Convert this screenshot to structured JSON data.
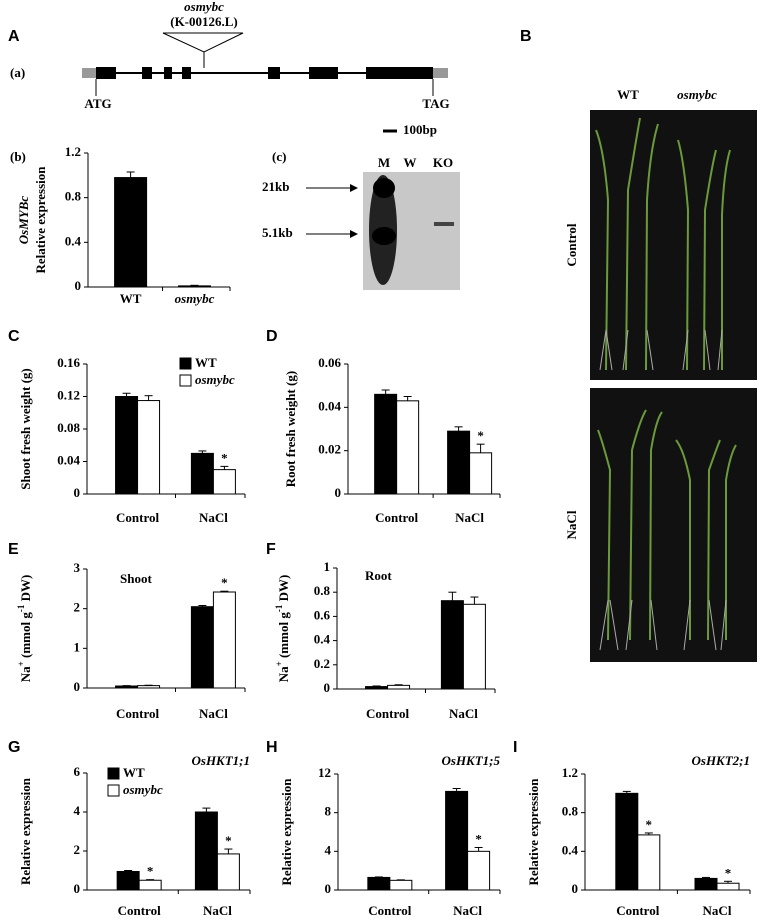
{
  "panels": {
    "A": "A",
    "B": "B",
    "a": "(a)",
    "b": "(b)",
    "c": "(c)",
    "C": "C",
    "D": "D",
    "E": "E",
    "F": "F",
    "G": "G",
    "H": "H",
    "I": "I"
  },
  "gene_diagram": {
    "insertion_gene": "osmybc",
    "insertion_line": "(K-00126.L)",
    "start": "ATG",
    "stop": "TAG",
    "scale": "100bp"
  },
  "gel": {
    "lanes": [
      "M",
      "W",
      "KO"
    ],
    "markers": [
      "21kb",
      "5.1kb"
    ]
  },
  "photo": {
    "columns": [
      "WT",
      "osmybc"
    ],
    "rows": [
      "Control",
      "NaCl"
    ]
  },
  "chart_data": [
    {
      "type": "bar",
      "title": "OsMYBc",
      "ylabel": "Relative expression",
      "categories": [
        "WT",
        "osmybc"
      ],
      "series": [
        {
          "color": "#000000",
          "values": [
            0.98,
            0.01
          ],
          "errors": [
            0.05,
            0.005
          ]
        }
      ],
      "ylim": [
        0,
        1.2
      ],
      "yticks": [
        0,
        0.4,
        0.8,
        1.2
      ]
    },
    {
      "type": "bar",
      "ylabel": "Shoot fresh weight (g)",
      "categories": [
        "Control",
        "NaCl"
      ],
      "series": [
        {
          "name": "WT",
          "color": "#000000",
          "values": [
            0.12,
            0.05
          ],
          "errors": [
            0.004,
            0.003
          ]
        },
        {
          "name": "osmybc",
          "color": "#ffffff",
          "values": [
            0.115,
            0.03
          ],
          "errors": [
            0.006,
            0.004
          ],
          "labels": [
            null,
            "*"
          ]
        }
      ],
      "ylim": [
        0,
        0.16
      ],
      "yticks": [
        0,
        0.04,
        0.08,
        0.12,
        0.16
      ],
      "legend": "top-right"
    },
    {
      "type": "bar",
      "ylabel": "Root fresh weight (g)",
      "categories": [
        "Control",
        "NaCl"
      ],
      "series": [
        {
          "color": "#000000",
          "values": [
            0.046,
            0.029
          ],
          "errors": [
            0.002,
            0.002
          ]
        },
        {
          "color": "#ffffff",
          "values": [
            0.043,
            0.019
          ],
          "errors": [
            0.002,
            0.004
          ],
          "labels": [
            null,
            "*"
          ]
        }
      ],
      "ylim": [
        0,
        0.06
      ],
      "yticks": [
        0,
        0.02,
        0.04,
        0.06
      ]
    },
    {
      "type": "bar",
      "title": "Shoot",
      "ylabel": [
        "Na",
        "+",
        " (mmol g",
        "-1",
        " DW)"
      ],
      "categories": [
        "Control",
        "NaCl"
      ],
      "series": [
        {
          "color": "#000000",
          "values": [
            0.05,
            2.05
          ],
          "errors": [
            0.01,
            0.03
          ]
        },
        {
          "color": "#ffffff",
          "values": [
            0.06,
            2.42
          ],
          "errors": [
            0.01,
            0.02
          ],
          "labels": [
            null,
            "*"
          ]
        }
      ],
      "ylim": [
        0,
        3
      ],
      "yticks": [
        0,
        1,
        2,
        3
      ]
    },
    {
      "type": "bar",
      "title": "Root",
      "ylabel": [
        "Na",
        "+",
        " (mmol g",
        "-1",
        " DW)"
      ],
      "categories": [
        "Control",
        "NaCl"
      ],
      "series": [
        {
          "color": "#000000",
          "values": [
            0.02,
            0.73
          ],
          "errors": [
            0.005,
            0.07
          ]
        },
        {
          "color": "#ffffff",
          "values": [
            0.03,
            0.7
          ],
          "errors": [
            0.005,
            0.06
          ]
        }
      ],
      "ylim": [
        0,
        1
      ],
      "yticks": [
        0,
        0.2,
        0.4,
        0.6,
        0.8,
        1
      ]
    },
    {
      "type": "bar",
      "title": "OsHKT1;1",
      "ylabel": "Relative expression",
      "categories": [
        "Control",
        "NaCl"
      ],
      "series": [
        {
          "name": "WT",
          "color": "#000000",
          "values": [
            0.95,
            4.0
          ],
          "errors": [
            0.05,
            0.2
          ]
        },
        {
          "name": "osmybc",
          "color": "#ffffff",
          "values": [
            0.5,
            1.85
          ],
          "errors": [
            0.03,
            0.25
          ],
          "labels": [
            "*",
            "*"
          ]
        }
      ],
      "ylim": [
        0,
        6
      ],
      "yticks": [
        0,
        2,
        4,
        6
      ],
      "legend": "top-left"
    },
    {
      "type": "bar",
      "title": "OsHKT1;5",
      "ylabel": "Relative expression",
      "categories": [
        "Control",
        "NaCl"
      ],
      "series": [
        {
          "color": "#000000",
          "values": [
            1.3,
            10.2
          ],
          "errors": [
            0.05,
            0.3
          ]
        },
        {
          "color": "#ffffff",
          "values": [
            1.0,
            4.0
          ],
          "errors": [
            0.05,
            0.4
          ],
          "labels": [
            null,
            "*"
          ]
        }
      ],
      "ylim": [
        0,
        12
      ],
      "yticks": [
        0,
        4,
        8,
        12
      ]
    },
    {
      "type": "bar",
      "title": "OsHKT2;1",
      "ylabel": "Relative expression",
      "categories": [
        "Control",
        "NaCl"
      ],
      "series": [
        {
          "color": "#000000",
          "values": [
            1.0,
            0.12
          ],
          "errors": [
            0.02,
            0.01
          ]
        },
        {
          "color": "#ffffff",
          "values": [
            0.57,
            0.07
          ],
          "errors": [
            0.02,
            0.02
          ],
          "labels": [
            "*",
            "*"
          ]
        }
      ],
      "ylim": [
        0,
        1.2
      ],
      "yticks": [
        0,
        0.4,
        0.8,
        1.2
      ]
    }
  ]
}
